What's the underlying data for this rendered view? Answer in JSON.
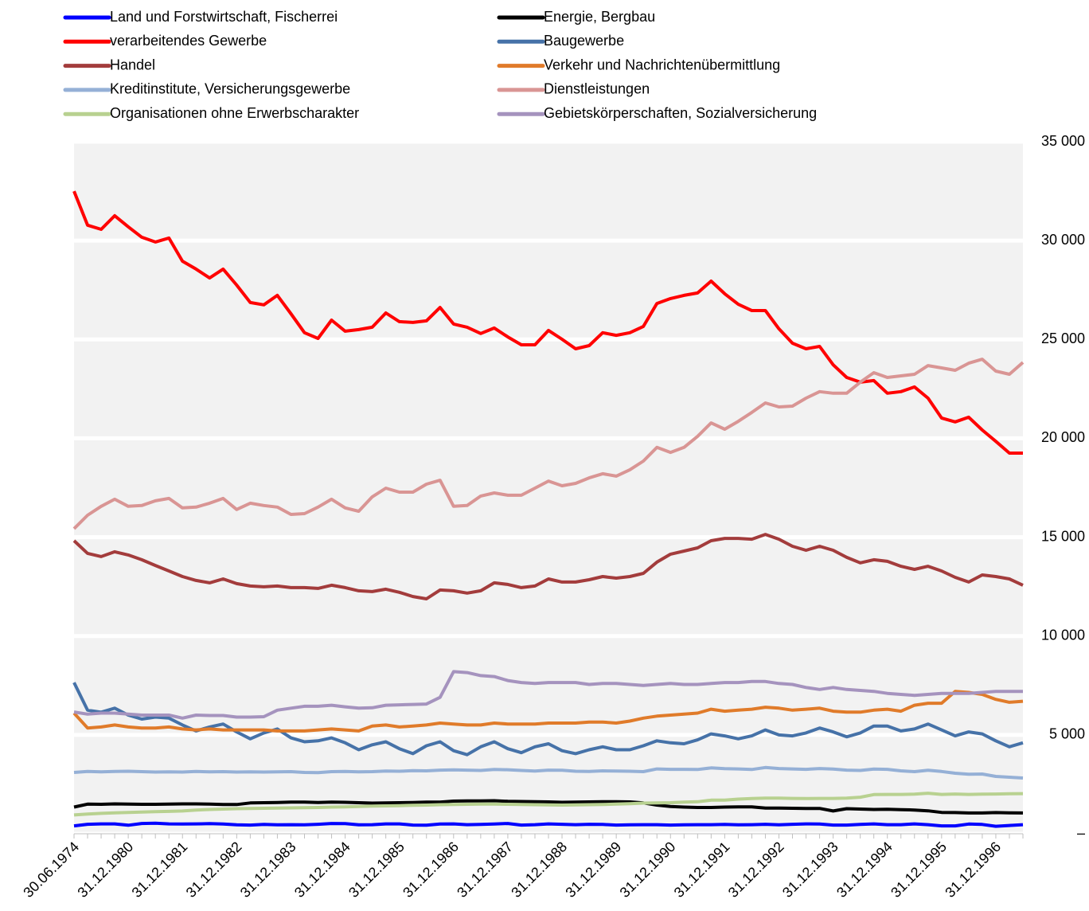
{
  "chart_data": {
    "type": "line",
    "categories": [
      "30.06.1974",
      null,
      null,
      null,
      "31.12.1980",
      null,
      null,
      null,
      "31.12.1981",
      null,
      null,
      null,
      "31.12.1982",
      null,
      null,
      null,
      "31.12.1983",
      null,
      null,
      null,
      "31.12.1984",
      null,
      null,
      null,
      "31.12.1985",
      null,
      null,
      null,
      "31.12.1986",
      null,
      null,
      null,
      "31.12.1987",
      null,
      null,
      null,
      "31.12.1988",
      null,
      null,
      null,
      "31.12.1989",
      null,
      null,
      null,
      "31.12.1990",
      null,
      null,
      null,
      "31.12.1991",
      null,
      null,
      null,
      "31.12.1992",
      null,
      null,
      null,
      "31.12.1993",
      null,
      null,
      null,
      "31.12.1994",
      null,
      null,
      null,
      "31.12.1995",
      null,
      null,
      null,
      "31.12.1996",
      null,
      null
    ],
    "ylim": [
      0,
      35000
    ],
    "yticks": [
      {
        "value": 0,
        "label": "–"
      },
      {
        "value": 5000,
        "label": "5 000"
      },
      {
        "value": 10000,
        "label": "10 000"
      },
      {
        "value": 15000,
        "label": "15 000"
      },
      {
        "value": 20000,
        "label": "20 000"
      },
      {
        "value": 25000,
        "label": "25 000"
      },
      {
        "value": 30000,
        "label": "30 000"
      },
      {
        "value": 35000,
        "label": "35 000"
      }
    ],
    "grid": true,
    "series": [
      {
        "name": "Land und Forstwirtschaft, Fischerrei",
        "color": "#0000ff",
        "values": [
          400,
          480,
          500,
          500,
          430,
          520,
          530,
          500,
          490,
          500,
          510,
          490,
          450,
          440,
          470,
          450,
          460,
          450,
          480,
          520,
          510,
          450,
          460,
          500,
          500,
          440,
          430,
          490,
          500,
          460,
          470,
          490,
          520,
          440,
          460,
          500,
          480,
          460,
          480,
          470,
          440,
          450,
          460,
          460,
          440,
          450,
          460,
          460,
          470,
          450,
          460,
          480,
          450,
          480,
          500,
          490,
          440,
          440,
          470,
          500,
          460,
          460,
          500,
          460,
          400,
          400,
          490,
          470,
          380,
          420,
          460
        ]
      },
      {
        "name": "Energie, Bergbau",
        "color": "#000000",
        "values": [
          1350,
          1500,
          1490,
          1510,
          1500,
          1490,
          1490,
          1500,
          1510,
          1510,
          1500,
          1480,
          1480,
          1560,
          1570,
          1580,
          1600,
          1600,
          1580,
          1600,
          1590,
          1570,
          1550,
          1560,
          1570,
          1580,
          1600,
          1600,
          1650,
          1660,
          1660,
          1670,
          1640,
          1630,
          1620,
          1610,
          1590,
          1600,
          1610,
          1620,
          1620,
          1610,
          1560,
          1450,
          1380,
          1350,
          1330,
          1330,
          1350,
          1360,
          1360,
          1300,
          1300,
          1290,
          1280,
          1280,
          1150,
          1270,
          1250,
          1230,
          1240,
          1220,
          1200,
          1160,
          1080,
          1070,
          1050,
          1050,
          1070,
          1060,
          1050
        ]
      },
      {
        "name": "verarbeitendes Gewerbe",
        "color": "#ff0000",
        "values": [
          32500,
          30780,
          30570,
          31260,
          30700,
          30170,
          29930,
          30130,
          28960,
          28560,
          28110,
          28560,
          27750,
          26870,
          26750,
          27230,
          26300,
          25340,
          25050,
          25980,
          25420,
          25500,
          25620,
          26340,
          25900,
          25860,
          25940,
          26620,
          25780,
          25620,
          25300,
          25580,
          25130,
          24730,
          24730,
          25460,
          25010,
          24530,
          24690,
          25340,
          25210,
          25340,
          25660,
          26820,
          27070,
          27230,
          27350,
          27950,
          27310,
          26780,
          26460,
          26460,
          25540,
          24810,
          24530,
          24650,
          23720,
          23080,
          22840,
          22920,
          22280,
          22360,
          22600,
          22030,
          21030,
          20830,
          21070,
          20420,
          19850,
          19250,
          19250
        ]
      },
      {
        "name": "Baugewerbe",
        "color": "#4672a8",
        "values": [
          7650,
          6250,
          6150,
          6350,
          6000,
          5800,
          5900,
          5850,
          5500,
          5200,
          5400,
          5550,
          5150,
          4800,
          5100,
          5300,
          4850,
          4650,
          4700,
          4850,
          4600,
          4250,
          4500,
          4650,
          4300,
          4050,
          4450,
          4650,
          4200,
          4000,
          4400,
          4650,
          4300,
          4100,
          4400,
          4550,
          4200,
          4050,
          4250,
          4400,
          4250,
          4250,
          4450,
          4700,
          4600,
          4550,
          4750,
          5050,
          4950,
          4800,
          4950,
          5250,
          5000,
          4950,
          5100,
          5350,
          5150,
          4900,
          5100,
          5450,
          5450,
          5200,
          5300,
          5550,
          5250,
          4950,
          5150,
          5050,
          4700,
          4400,
          4600
        ]
      },
      {
        "name": "Handel",
        "color": "#a33c3c",
        "values": [
          14820,
          14180,
          14020,
          14260,
          14100,
          13860,
          13570,
          13290,
          13010,
          12810,
          12690,
          12890,
          12650,
          12530,
          12490,
          12530,
          12450,
          12450,
          12410,
          12570,
          12450,
          12290,
          12250,
          12370,
          12210,
          12000,
          11880,
          12330,
          12290,
          12170,
          12290,
          12690,
          12610,
          12450,
          12530,
          12890,
          12730,
          12730,
          12850,
          13010,
          12930,
          13010,
          13170,
          13740,
          14140,
          14300,
          14460,
          14820,
          14940,
          14940,
          14900,
          15140,
          14900,
          14540,
          14340,
          14540,
          14340,
          13980,
          13700,
          13860,
          13780,
          13530,
          13370,
          13530,
          13290,
          12970,
          12730,
          13090,
          13010,
          12890,
          12570
        ]
      },
      {
        "name": "Verkehr und Nachrichtenübermittlung",
        "color": "#e07b2a",
        "values": [
          6100,
          5350,
          5400,
          5500,
          5400,
          5350,
          5350,
          5400,
          5300,
          5250,
          5300,
          5250,
          5250,
          5250,
          5250,
          5200,
          5200,
          5200,
          5250,
          5300,
          5250,
          5200,
          5450,
          5500,
          5400,
          5450,
          5500,
          5600,
          5550,
          5500,
          5500,
          5600,
          5550,
          5550,
          5550,
          5600,
          5600,
          5600,
          5650,
          5650,
          5600,
          5700,
          5850,
          5950,
          6000,
          6050,
          6100,
          6300,
          6200,
          6250,
          6300,
          6400,
          6350,
          6250,
          6300,
          6350,
          6200,
          6150,
          6150,
          6250,
          6300,
          6200,
          6500,
          6600,
          6600,
          7200,
          7150,
          7050,
          6800,
          6650,
          6700
        ]
      },
      {
        "name": "Kreditinstitute, Versicherungsgewerbe",
        "color": "#95b0d6",
        "values": [
          3100,
          3150,
          3130,
          3150,
          3160,
          3140,
          3120,
          3130,
          3120,
          3150,
          3130,
          3140,
          3120,
          3130,
          3120,
          3130,
          3140,
          3100,
          3090,
          3140,
          3150,
          3130,
          3140,
          3170,
          3160,
          3190,
          3180,
          3220,
          3230,
          3220,
          3200,
          3250,
          3240,
          3200,
          3170,
          3220,
          3210,
          3160,
          3150,
          3180,
          3170,
          3160,
          3140,
          3280,
          3260,
          3260,
          3250,
          3330,
          3290,
          3280,
          3250,
          3350,
          3300,
          3280,
          3260,
          3300,
          3270,
          3220,
          3200,
          3270,
          3260,
          3180,
          3140,
          3210,
          3150,
          3060,
          3010,
          3020,
          2900,
          2860,
          2820
        ]
      },
      {
        "name": "Dienstleistungen",
        "color": "#d99594",
        "values": [
          15430,
          16110,
          16560,
          16920,
          16560,
          16600,
          16840,
          16960,
          16480,
          16520,
          16720,
          16960,
          16400,
          16720,
          16600,
          16520,
          16150,
          16190,
          16520,
          16920,
          16480,
          16310,
          17040,
          17480,
          17280,
          17280,
          17680,
          17880,
          16560,
          16600,
          17080,
          17240,
          17120,
          17120,
          17480,
          17840,
          17600,
          17720,
          18000,
          18210,
          18090,
          18410,
          18850,
          19540,
          19290,
          19540,
          20100,
          20780,
          20460,
          20860,
          21310,
          21790,
          21590,
          21630,
          22030,
          22360,
          22280,
          22280,
          22840,
          23320,
          23080,
          23160,
          23240,
          23680,
          23560,
          23440,
          23800,
          24000,
          23400,
          23240,
          23840
        ]
      },
      {
        "name": "Organisationen ohne Erwerbscharakter",
        "color": "#b8d190",
        "values": [
          950,
          1000,
          1030,
          1060,
          1080,
          1100,
          1120,
          1130,
          1150,
          1200,
          1230,
          1250,
          1270,
          1280,
          1290,
          1300,
          1310,
          1320,
          1330,
          1350,
          1360,
          1380,
          1400,
          1410,
          1420,
          1440,
          1450,
          1470,
          1480,
          1490,
          1500,
          1500,
          1490,
          1480,
          1470,
          1460,
          1450,
          1460,
          1470,
          1480,
          1500,
          1520,
          1550,
          1560,
          1570,
          1600,
          1620,
          1700,
          1700,
          1750,
          1780,
          1800,
          1800,
          1790,
          1780,
          1790,
          1790,
          1800,
          1850,
          1980,
          1990,
          1990,
          2000,
          2050,
          1990,
          2010,
          1990,
          2000,
          2010,
          2020,
          2030
        ]
      },
      {
        "name": "Gebietskörperschaften, Sozialversicherung",
        "color": "#a593be",
        "values": [
          6160,
          6050,
          6100,
          6100,
          6050,
          6000,
          6000,
          6000,
          5850,
          6000,
          5980,
          5980,
          5900,
          5900,
          5920,
          6250,
          6350,
          6450,
          6450,
          6500,
          6420,
          6350,
          6370,
          6500,
          6520,
          6540,
          6560,
          6900,
          8200,
          8150,
          8000,
          7950,
          7750,
          7650,
          7600,
          7650,
          7650,
          7650,
          7550,
          7600,
          7600,
          7550,
          7500,
          7550,
          7600,
          7550,
          7550,
          7600,
          7650,
          7650,
          7700,
          7700,
          7600,
          7550,
          7400,
          7300,
          7400,
          7300,
          7250,
          7200,
          7100,
          7050,
          7000,
          7050,
          7100,
          7100,
          7100,
          7150,
          7200,
          7200,
          7200
        ]
      }
    ]
  }
}
